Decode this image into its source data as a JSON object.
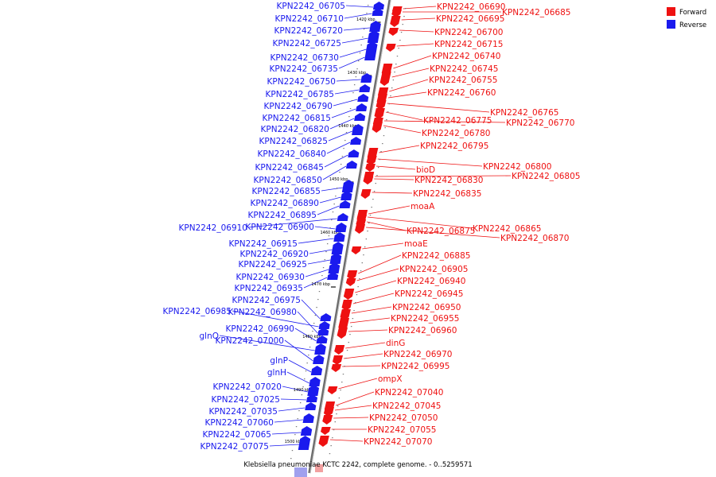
{
  "colors": {
    "forward": "#ee1111",
    "reverse": "#1a1aee",
    "axis": "#888888"
  },
  "legend": {
    "forward": "Forward",
    "reverse": "Reverse"
  },
  "caption": "Klebsiella pneumoniae KCTC 2242, complete genome. - 0..5259571",
  "ticks": [
    "1420 kbp",
    "1430 kbp",
    "1440 kbp",
    "1450 kbp",
    "1460 kbp",
    "1470 kbp",
    "1480 kbp",
    "1490 kbp",
    "1500 kbp"
  ],
  "forward_genes": [
    "KPN2242_06690",
    "KPN2242_06685",
    "KPN2242_06695",
    "KPN2242_06700",
    "KPN2242_06715",
    "KPN2242_06740",
    "KPN2242_06745",
    "KPN2242_06755",
    "KPN2242_06760",
    "KPN2242_06765",
    "KPN2242_06775",
    "KPN2242_06770",
    "KPN2242_06780",
    "KPN2242_06795",
    "KPN2242_06800",
    "bioD",
    "KPN2242_06805",
    "KPN2242_06830",
    "KPN2242_06835",
    "moaA",
    "KPN2242_06865",
    "KPN2242_06875",
    "KPN2242_06870",
    "moaE",
    "KPN2242_06885",
    "KPN2242_06905",
    "KPN2242_06940",
    "KPN2242_06945",
    "KPN2242_06950",
    "KPN2242_06955",
    "KPN2242_06960",
    "dinG",
    "KPN2242_06970",
    "KPN2242_06995",
    "ompX",
    "KPN2242_07040",
    "KPN2242_07045",
    "KPN2242_07050",
    "KPN2242_07055",
    "KPN2242_07070"
  ],
  "reverse_genes": [
    "KPN2242_06705",
    "KPN2242_06710",
    "KPN2242_06720",
    "KPN2242_06725",
    "KPN2242_06730",
    "KPN2242_06735",
    "KPN2242_06750",
    "KPN2242_06785",
    "KPN2242_06790",
    "KPN2242_06815",
    "KPN2242_06820",
    "KPN2242_06825",
    "KPN2242_06840",
    "KPN2242_06845",
    "KPN2242_06850",
    "KPN2242_06855",
    "KPN2242_06890",
    "KPN2242_06895",
    "KPN2242_06910",
    "KPN2242_06900",
    "KPN2242_06915",
    "KPN2242_06920",
    "KPN2242_06925",
    "KPN2242_06930",
    "KPN2242_06935",
    "KPN2242_06975",
    "KPN2242_06985",
    "KPN2242_06980",
    "KPN2242_06990",
    "glnQ",
    "KPN2242_07000",
    "glnP",
    "glnH",
    "KPN2242_07020",
    "KPN2242_07025",
    "KPN2242_07035",
    "KPN2242_07060",
    "KPN2242_07065",
    "KPN2242_07075"
  ]
}
